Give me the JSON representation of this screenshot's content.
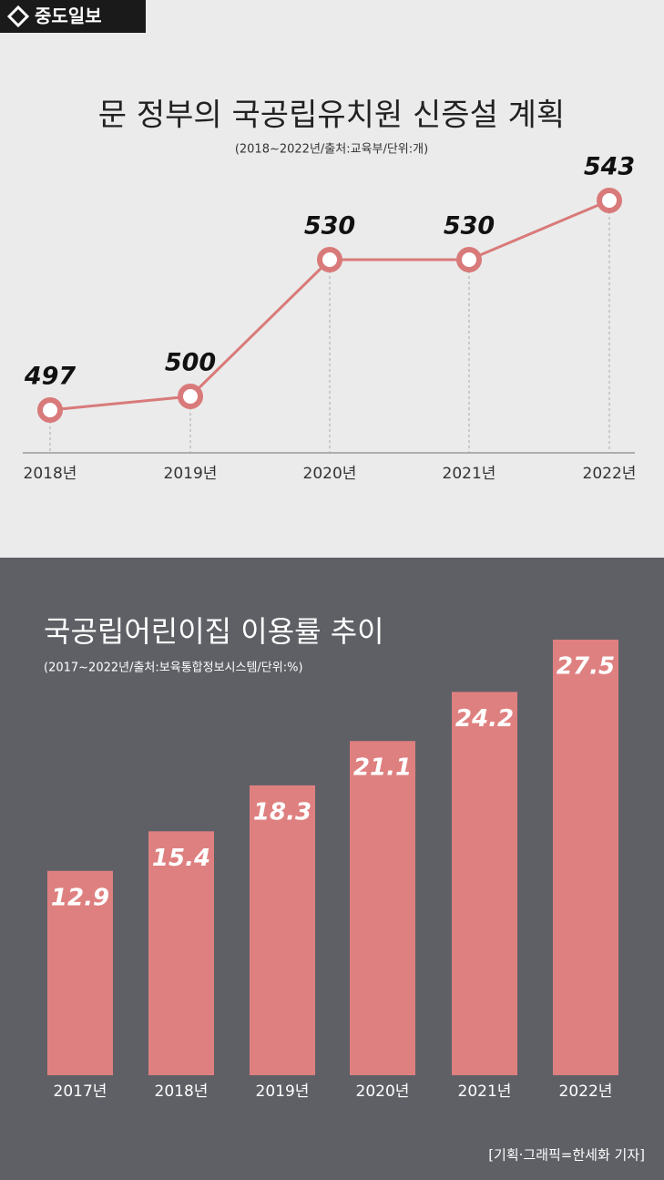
{
  "logo": "중도일보",
  "chart_data": [
    {
      "type": "line",
      "title": "문 정부의 국공립유치원 신증설 계획",
      "subtitle": "(2018~2022년/출처:교육부/단위:개)",
      "categories": [
        "2018년",
        "2019년",
        "2020년",
        "2021년",
        "2022년"
      ],
      "values": [
        497,
        500,
        530,
        530,
        543
      ],
      "color": "#d97a7a"
    },
    {
      "type": "bar",
      "title": "국공립어린이집 이용률 추이",
      "subtitle": "(2017~2022년/출처:보육통합정보시스템/단위:%)",
      "categories": [
        "2017년",
        "2018년",
        "2019년",
        "2020년",
        "2021년",
        "2022년"
      ],
      "values": [
        12.9,
        15.4,
        18.3,
        21.1,
        24.2,
        27.5
      ],
      "color": "#df8080"
    }
  ],
  "credit": "[기획·그래픽=한세화 기자]"
}
